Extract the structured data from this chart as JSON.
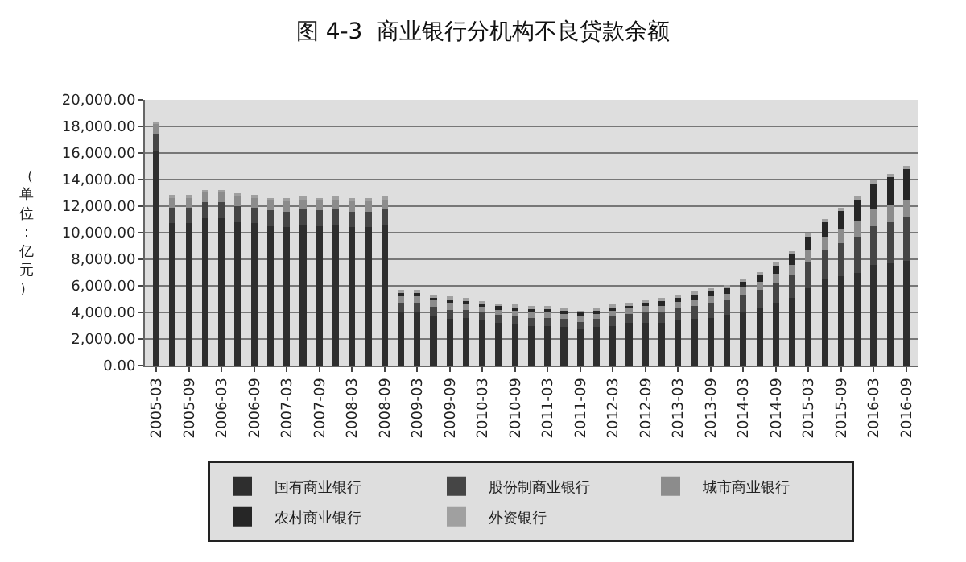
{
  "chart_data": {
    "type": "bar",
    "title": "图 4-3  商业银行分机构不良贷款余额",
    "ylabel": "（单位：亿元）",
    "stacked": true,
    "grid": "y",
    "legend": "bottom",
    "categories": [
      "2005-03",
      null,
      "2005-09",
      null,
      "2006-03",
      null,
      "2006-09",
      null,
      "2007-03",
      null,
      "2007-09",
      null,
      "2008-03",
      null,
      "2008-09",
      null,
      "2009-03",
      null,
      "2009-09",
      null,
      "2010-03",
      null,
      "2010-09",
      null,
      "2011-03",
      null,
      "2011-09",
      null,
      "2012-03",
      null,
      "2012-09",
      null,
      "2013-03",
      null,
      "2013-09",
      null,
      "2014-03",
      null,
      "2014-09",
      null,
      "2015-03",
      null,
      "2015-09",
      null,
      "2016-03",
      null,
      "2016-09"
    ],
    "ylim": [
      0,
      20000
    ],
    "yticks": [
      {
        "value": 0,
        "label": "0.00"
      },
      {
        "value": 2000,
        "label": "2,000.00"
      },
      {
        "value": 4000,
        "label": "4,000.00"
      },
      {
        "value": 6000,
        "label": "6,000.00"
      },
      {
        "value": 8000,
        "label": "8,000.00"
      },
      {
        "value": 10000,
        "label": "10,000.00"
      },
      {
        "value": 12000,
        "label": "12,000.00"
      },
      {
        "value": 14000,
        "label": "14,000.00"
      },
      {
        "value": 16000,
        "label": "16,000.00"
      },
      {
        "value": 18000,
        "label": "18,000.00"
      },
      {
        "value": 20000,
        "label": "20,000.00"
      }
    ],
    "series": [
      {
        "name": "国有商业银行",
        "color": "#2e2e2e",
        "values": [
          16200,
          10700,
          10700,
          11100,
          11100,
          10800,
          10700,
          10500,
          10400,
          10600,
          10500,
          10600,
          10400,
          10400,
          10600,
          4000,
          4000,
          3700,
          3500,
          3600,
          3400,
          3200,
          3100,
          3000,
          3000,
          2900,
          2700,
          2900,
          3000,
          3200,
          3200,
          3200,
          3400,
          3500,
          3600,
          3800,
          4000,
          4300,
          4700,
          5100,
          5800,
          6500,
          6700,
          7000,
          7600,
          7700,
          7900
        ]
      },
      {
        "name": "股份制商业银行",
        "color": "#454545",
        "values": [
          1200,
          1200,
          1200,
          1200,
          1200,
          1200,
          1200,
          1200,
          1200,
          1200,
          1200,
          1200,
          1200,
          1200,
          1200,
          700,
          700,
          700,
          700,
          600,
          600,
          600,
          600,
          600,
          600,
          600,
          600,
          600,
          700,
          700,
          800,
          800,
          900,
          1000,
          1100,
          1100,
          1300,
          1400,
          1500,
          1700,
          2000,
          2200,
          2500,
          2700,
          2900,
          3100,
          3300
        ]
      },
      {
        "name": "城市商业银行",
        "color": "#8c8c8c",
        "values": [
          800,
          800,
          800,
          800,
          800,
          800,
          800,
          800,
          800,
          800,
          800,
          800,
          800,
          800,
          800,
          500,
          500,
          500,
          500,
          400,
          400,
          400,
          400,
          400,
          400,
          400,
          400,
          400,
          400,
          400,
          500,
          500,
          500,
          500,
          500,
          500,
          600,
          600,
          700,
          800,
          900,
          1000,
          1100,
          1200,
          1300,
          1300,
          1300
        ]
      },
      {
        "name": "农村商业银行",
        "color": "#262626",
        "values": [
          null,
          null,
          null,
          null,
          null,
          null,
          null,
          null,
          null,
          null,
          null,
          null,
          null,
          null,
          null,
          300,
          300,
          300,
          300,
          300,
          300,
          300,
          300,
          300,
          300,
          300,
          300,
          300,
          300,
          300,
          300,
          400,
          400,
          400,
          400,
          500,
          500,
          600,
          700,
          800,
          1000,
          1100,
          1400,
          1700,
          2000,
          2100,
          2300
        ]
      },
      {
        "name": "外资银行",
        "color": "#a0a0a0",
        "values": [
          100,
          100,
          100,
          100,
          100,
          100,
          100,
          100,
          100,
          100,
          100,
          100,
          100,
          100,
          100,
          100,
          100,
          100,
          100,
          100,
          100,
          100,
          100,
          100,
          100,
          100,
          100,
          100,
          100,
          100,
          100,
          100,
          100,
          100,
          100,
          100,
          100,
          100,
          100,
          100,
          200,
          200,
          200,
          200,
          200,
          200,
          200
        ]
      }
    ]
  }
}
